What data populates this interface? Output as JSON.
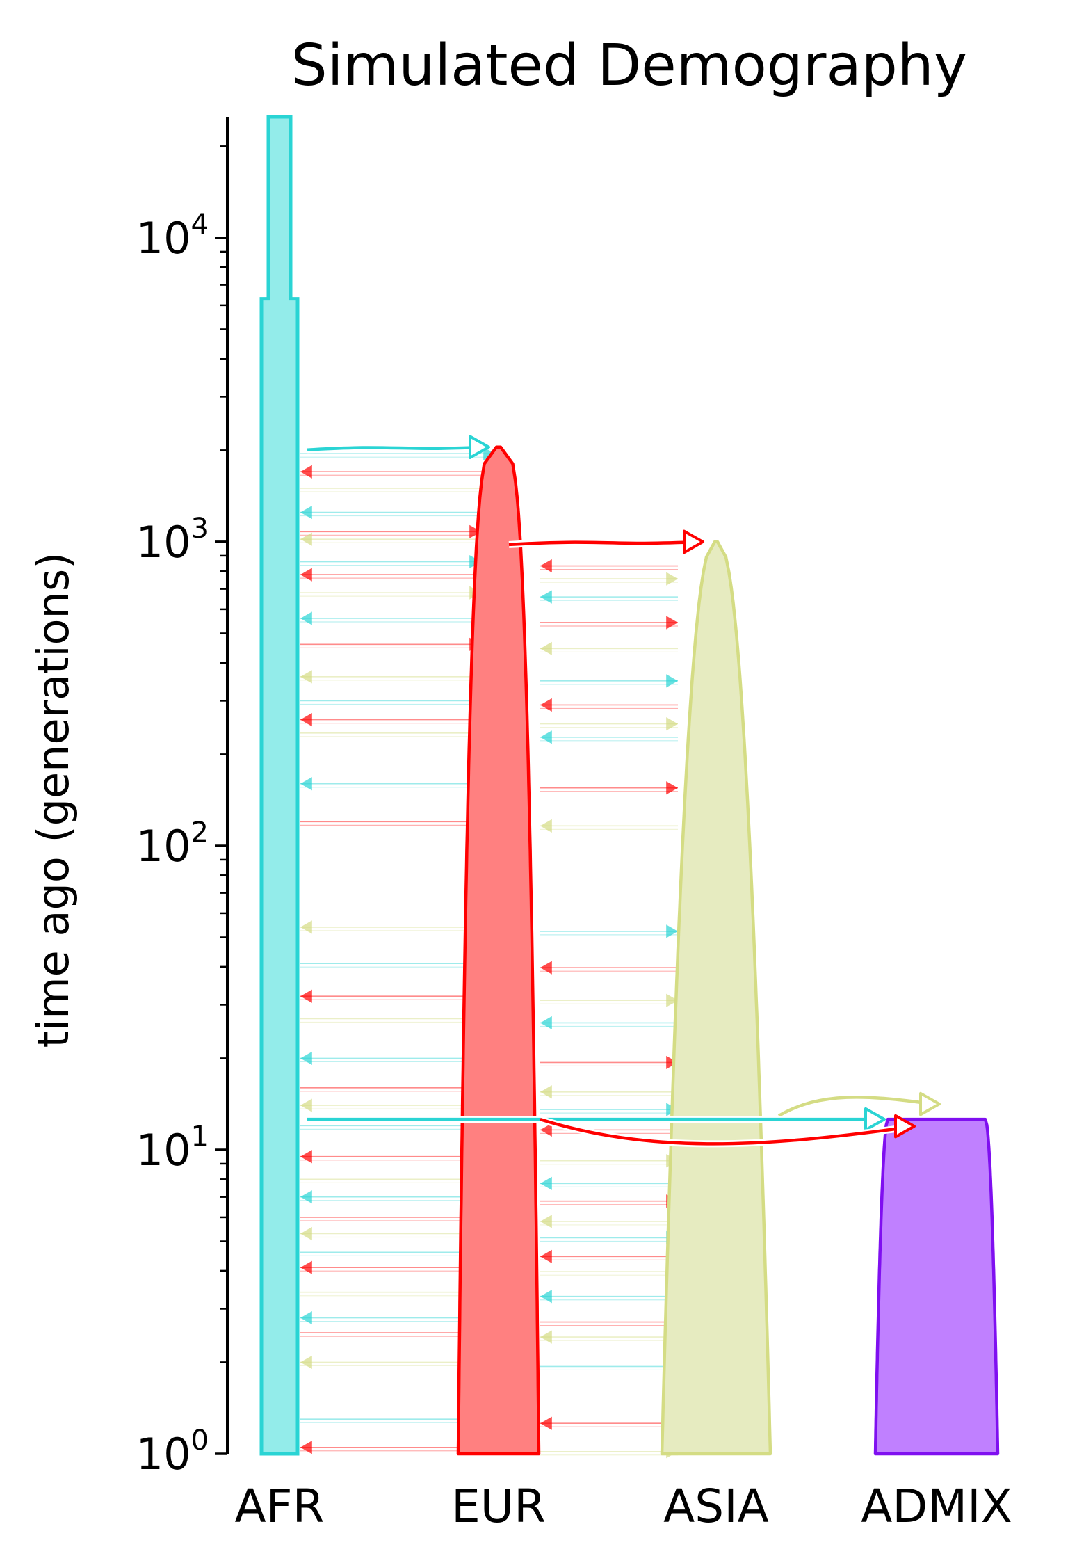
{
  "chart_data": {
    "type": "demography",
    "title": "Simulated Demography",
    "ylabel": "time ago (generations)",
    "xlabel": "",
    "y_scale": "log",
    "ylim": [
      1,
      25000
    ],
    "y_ticks": [
      {
        "base": "10",
        "exp": "0",
        "value": 1
      },
      {
        "base": "10",
        "exp": "1",
        "value": 10
      },
      {
        "base": "10",
        "exp": "2",
        "value": 100
      },
      {
        "base": "10",
        "exp": "3",
        "value": 1000
      },
      {
        "base": "10",
        "exp": "4",
        "value": 10000
      }
    ],
    "populations": [
      {
        "name": "AFR",
        "color": "#2ad4d4",
        "fill": "#93ecea",
        "start_time": 25000,
        "shape": "constant",
        "size_change_time": 6200
      },
      {
        "name": "EUR",
        "color": "#ff0000",
        "fill": "#ff8080",
        "start_time": 2050,
        "shape": "exponential"
      },
      {
        "name": "ASIA",
        "color": "#d4dc84",
        "fill": "#e6ebc0",
        "start_time": 1000,
        "shape": "exponential"
      },
      {
        "name": "ADMIX",
        "color": "#7f0ff0",
        "fill": "#c080ff",
        "start_time": 12.6,
        "shape": "exponential"
      }
    ],
    "splits": [
      {
        "from": "AFR",
        "to": "EUR",
        "time": 2050
      },
      {
        "from": "EUR",
        "to": "ASIA",
        "time": 1000
      }
    ],
    "admixture": [
      {
        "from": "AFR",
        "to": "ADMIX",
        "time": 12.6
      },
      {
        "from": "EUR",
        "to": "ADMIX",
        "time": 12.6
      },
      {
        "from": "ASIA",
        "to": "ADMIX",
        "time": 12.6
      }
    ],
    "migration_times": [
      1950,
      1700,
      1500,
      1250,
      1080,
      1020,
      860,
      780,
      680,
      560,
      460,
      360,
      300,
      260,
      235,
      160,
      120,
      54,
      41,
      32,
      27,
      20,
      16,
      14,
      12,
      9.5,
      8,
      7,
      6,
      5.3,
      4.6,
      4.1,
      3.4,
      2.8,
      2.5,
      2.0,
      1.3,
      1.05
    ]
  }
}
